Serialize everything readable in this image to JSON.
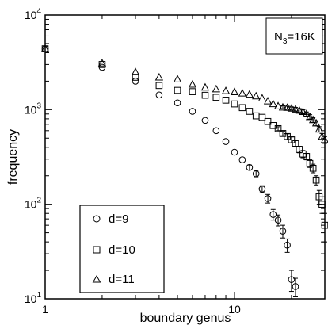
{
  "chart_data": {
    "type": "scatter",
    "title": "",
    "xlabel": "boundary genus",
    "ylabel": "frequency",
    "x_scale": "log",
    "y_scale": "log",
    "xlim": [
      1,
      30
    ],
    "ylim": [
      10,
      10000
    ],
    "grid": false,
    "legend_position": "bottom-left",
    "annotation": {
      "prefix": "N",
      "subscript": "3",
      "suffix": "=16K"
    },
    "x_ticks": [
      {
        "value": 1,
        "label": "1"
      },
      {
        "value": 10,
        "label": "10"
      }
    ],
    "y_ticks": [
      {
        "value": 10,
        "base": "10",
        "exp": "1"
      },
      {
        "value": 100,
        "base": "10",
        "exp": "2"
      },
      {
        "value": 1000,
        "base": "10",
        "exp": "3"
      },
      {
        "value": 10000,
        "base": "10",
        "exp": "4"
      }
    ],
    "series": [
      {
        "name": "d=9",
        "marker": "circle",
        "x": [
          1,
          2,
          3,
          4,
          5,
          6,
          7,
          8,
          9,
          10,
          11,
          12,
          13,
          14,
          15,
          16,
          17,
          18,
          19,
          20,
          21
        ],
        "y": [
          4400,
          2800,
          2000,
          1430,
          1180,
          960,
          770,
          600,
          460,
          355,
          295,
          245,
          210,
          145,
          115,
          78,
          68,
          52,
          37,
          16,
          13.5
        ],
        "err": [
          0,
          0,
          0,
          0,
          0,
          0,
          0,
          0,
          0,
          0,
          0,
          15,
          15,
          12,
          12,
          10,
          9,
          8,
          6,
          4,
          3
        ]
      },
      {
        "name": "d=10",
        "marker": "square",
        "x": [
          1,
          2,
          3,
          4,
          5,
          6,
          7,
          8,
          9,
          10,
          11,
          12,
          13,
          14,
          15,
          16,
          17,
          18,
          19,
          20,
          21,
          22,
          23,
          24,
          25,
          26,
          27,
          28,
          29,
          30
        ],
        "y": [
          4400,
          3000,
          2200,
          1800,
          1600,
          1550,
          1420,
          1350,
          1260,
          1150,
          1050,
          960,
          860,
          830,
          750,
          680,
          630,
          560,
          520,
          480,
          440,
          380,
          340,
          320,
          270,
          240,
          180,
          120,
          100,
          60
        ],
        "err": [
          0,
          0,
          0,
          0,
          0,
          0,
          0,
          0,
          0,
          0,
          0,
          0,
          0,
          0,
          0,
          0,
          30,
          30,
          35,
          35,
          30,
          30,
          30,
          25,
          25,
          25,
          20,
          20,
          20,
          20
        ]
      },
      {
        "name": "d=11",
        "marker": "triangle",
        "x": [
          1,
          2,
          3,
          4,
          5,
          6,
          7,
          8,
          9,
          10,
          11,
          12,
          13,
          14,
          15,
          16,
          17,
          18,
          19,
          20,
          21,
          22,
          23,
          24,
          25,
          26,
          27,
          28,
          29,
          30
        ],
        "y": [
          4400,
          3100,
          2500,
          2200,
          2100,
          1850,
          1720,
          1650,
          1580,
          1540,
          1490,
          1450,
          1390,
          1320,
          1230,
          1150,
          1090,
          1060,
          1050,
          1030,
          1010,
          980,
          950,
          900,
          840,
          780,
          720,
          620,
          520,
          480
        ],
        "err": [
          0,
          0,
          0,
          0,
          0,
          0,
          0,
          0,
          0,
          0,
          0,
          0,
          0,
          0,
          0,
          0,
          0,
          40,
          40,
          40,
          45,
          45,
          45,
          45,
          45,
          45,
          45,
          40,
          40,
          40
        ]
      }
    ]
  }
}
